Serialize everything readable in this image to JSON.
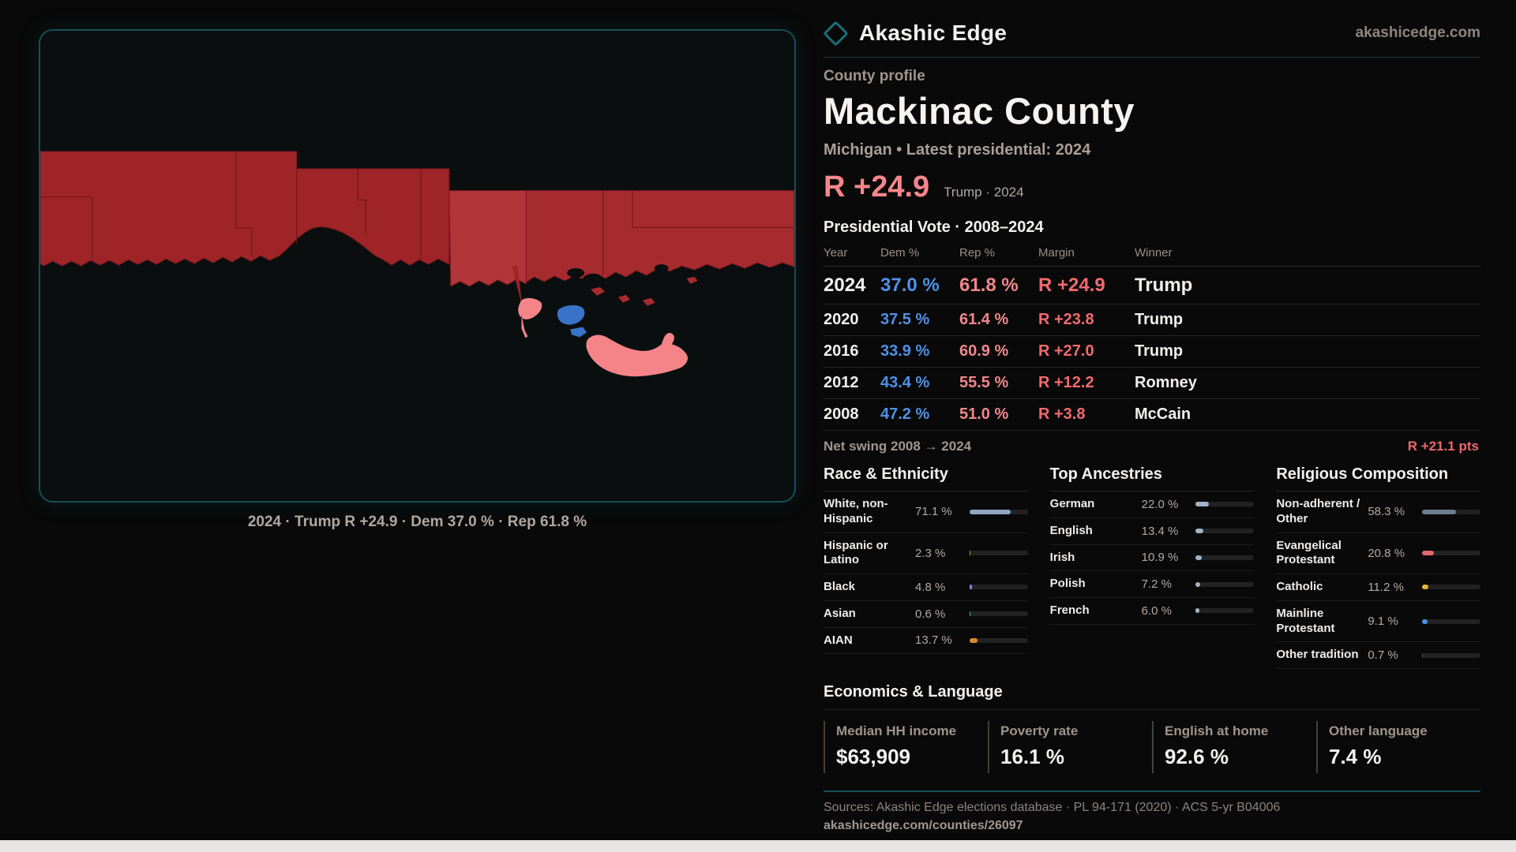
{
  "brand": {
    "name": "Akashic Edge",
    "domain": "akashicedge.com"
  },
  "profile": {
    "kicker": "County profile",
    "title": "Mackinac County",
    "subtitle": "Michigan • Latest presidential: 2024"
  },
  "headline": {
    "margin": "R +24.9",
    "context": "Trump · 2024"
  },
  "map": {
    "caption": "2024 · Trump R +24.9 · Dem 37.0 % · Rep 61.8 %"
  },
  "vote_table": {
    "title": "Presidential Vote · 2008–2024",
    "columns": [
      "Year",
      "Dem %",
      "Rep %",
      "Margin",
      "Winner"
    ],
    "rows": [
      {
        "year": "2024",
        "dem": "37.0 %",
        "rep": "61.8 %",
        "margin": "R +24.9",
        "winner": "Trump"
      },
      {
        "year": "2020",
        "dem": "37.5 %",
        "rep": "61.4 %",
        "margin": "R +23.8",
        "winner": "Trump"
      },
      {
        "year": "2016",
        "dem": "33.9 %",
        "rep": "60.9 %",
        "margin": "R +27.0",
        "winner": "Trump"
      },
      {
        "year": "2012",
        "dem": "43.4 %",
        "rep": "55.5 %",
        "margin": "R +12.2",
        "winner": "Romney"
      },
      {
        "year": "2008",
        "dem": "47.2 %",
        "rep": "51.0 %",
        "margin": "R +3.8",
        "winner": "McCain"
      }
    ],
    "net_swing_label": "Net swing 2008 → 2024",
    "net_swing_value": "R +21.1 pts"
  },
  "demographics": {
    "race": {
      "title": "Race & Ethnicity",
      "rows": [
        {
          "label": "White, non-Hispanic",
          "value": "71.1 %",
          "pct": 71.1,
          "color": "#8ea6c0"
        },
        {
          "label": "Hispanic or Latino",
          "value": "2.3 %",
          "pct": 2.3,
          "color": "#d99a2e"
        },
        {
          "label": "Black",
          "value": "4.8 %",
          "pct": 4.8,
          "color": "#8a7ce6"
        },
        {
          "label": "Asian",
          "value": "0.6 %",
          "pct": 0.6,
          "color": "#35bfa0"
        },
        {
          "label": "AIAN",
          "value": "13.7 %",
          "pct": 13.7,
          "color": "#dd8a26"
        }
      ]
    },
    "ancestries": {
      "title": "Top Ancestries",
      "rows": [
        {
          "label": "German",
          "value": "22.0 %",
          "pct": 22.0,
          "color": "#9fb3c8"
        },
        {
          "label": "English",
          "value": "13.4 %",
          "pct": 13.4,
          "color": "#9fb3c8"
        },
        {
          "label": "Irish",
          "value": "10.9 %",
          "pct": 10.9,
          "color": "#9fb3c8"
        },
        {
          "label": "Polish",
          "value": "7.2 %",
          "pct": 7.2,
          "color": "#9fb3c8"
        },
        {
          "label": "French",
          "value": "6.0 %",
          "pct": 6.0,
          "color": "#9fb3c8"
        }
      ]
    },
    "religion": {
      "title": "Religious Composition",
      "rows": [
        {
          "label": "Non-adherent / Other",
          "value": "58.3 %",
          "pct": 58.3,
          "color": "#6b7c93"
        },
        {
          "label": "Evangelical Protestant",
          "value": "20.8 %",
          "pct": 20.8,
          "color": "#e0696e"
        },
        {
          "label": "Catholic",
          "value": "11.2 %",
          "pct": 11.2,
          "color": "#e3b33a"
        },
        {
          "label": "Mainline Protestant",
          "value": "9.1 %",
          "pct": 9.1,
          "color": "#4a8fe0"
        },
        {
          "label": "Other tradition",
          "value": "0.7 %",
          "pct": 0.7,
          "color": "#555555"
        }
      ]
    }
  },
  "economics": {
    "title": "Economics & Language",
    "stats": [
      {
        "label": "Median HH income",
        "value": "$63,909"
      },
      {
        "label": "Poverty rate",
        "value": "16.1 %"
      },
      {
        "label": "English at home",
        "value": "92.6 %"
      },
      {
        "label": "Other language",
        "value": "7.4 %"
      }
    ]
  },
  "footer": {
    "sources": "Sources: Akashic Edge elections database · PL 94-171 (2020) · ACS 5-yr B04006",
    "permalink": "akashicedge.com/counties/26097"
  },
  "colors": {
    "accent_teal": "#14505a",
    "rep_red": "#f1878b",
    "dem_blue": "#4e92e6",
    "margin_red": "#f16a6f",
    "map_county_dark": "#9e2428",
    "map_county_light": "#b23539",
    "map_highlight": "#f58489",
    "map_dem_county": "#3a72c8"
  }
}
